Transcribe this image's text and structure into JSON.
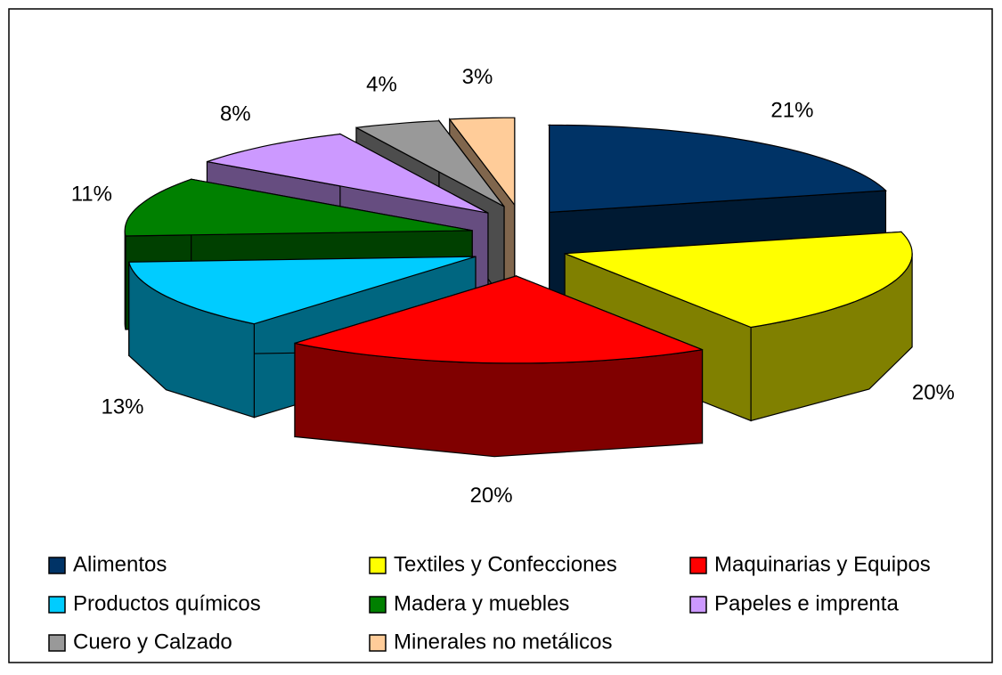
{
  "chart_data": {
    "type": "pie3d",
    "categories": [
      "Alimentos",
      "Textiles y Confecciones",
      "Maquinarias y Equipos",
      "Productos químicos",
      "Madera y muebles",
      "Papeles e imprenta",
      "Cuero y Calzado",
      "Minerales no metálicos"
    ],
    "values": [
      21,
      20,
      20,
      13,
      11,
      8,
      4,
      3
    ],
    "value_labels": [
      "21%",
      "20%",
      "20%",
      "13%",
      "11%",
      "8%",
      "4%",
      "3%"
    ],
    "colors": [
      "#003366",
      "#ffff00",
      "#ff0000",
      "#00ccff",
      "#008000",
      "#cc99ff",
      "#999999",
      "#ffcc99"
    ],
    "legend": "bottom"
  }
}
